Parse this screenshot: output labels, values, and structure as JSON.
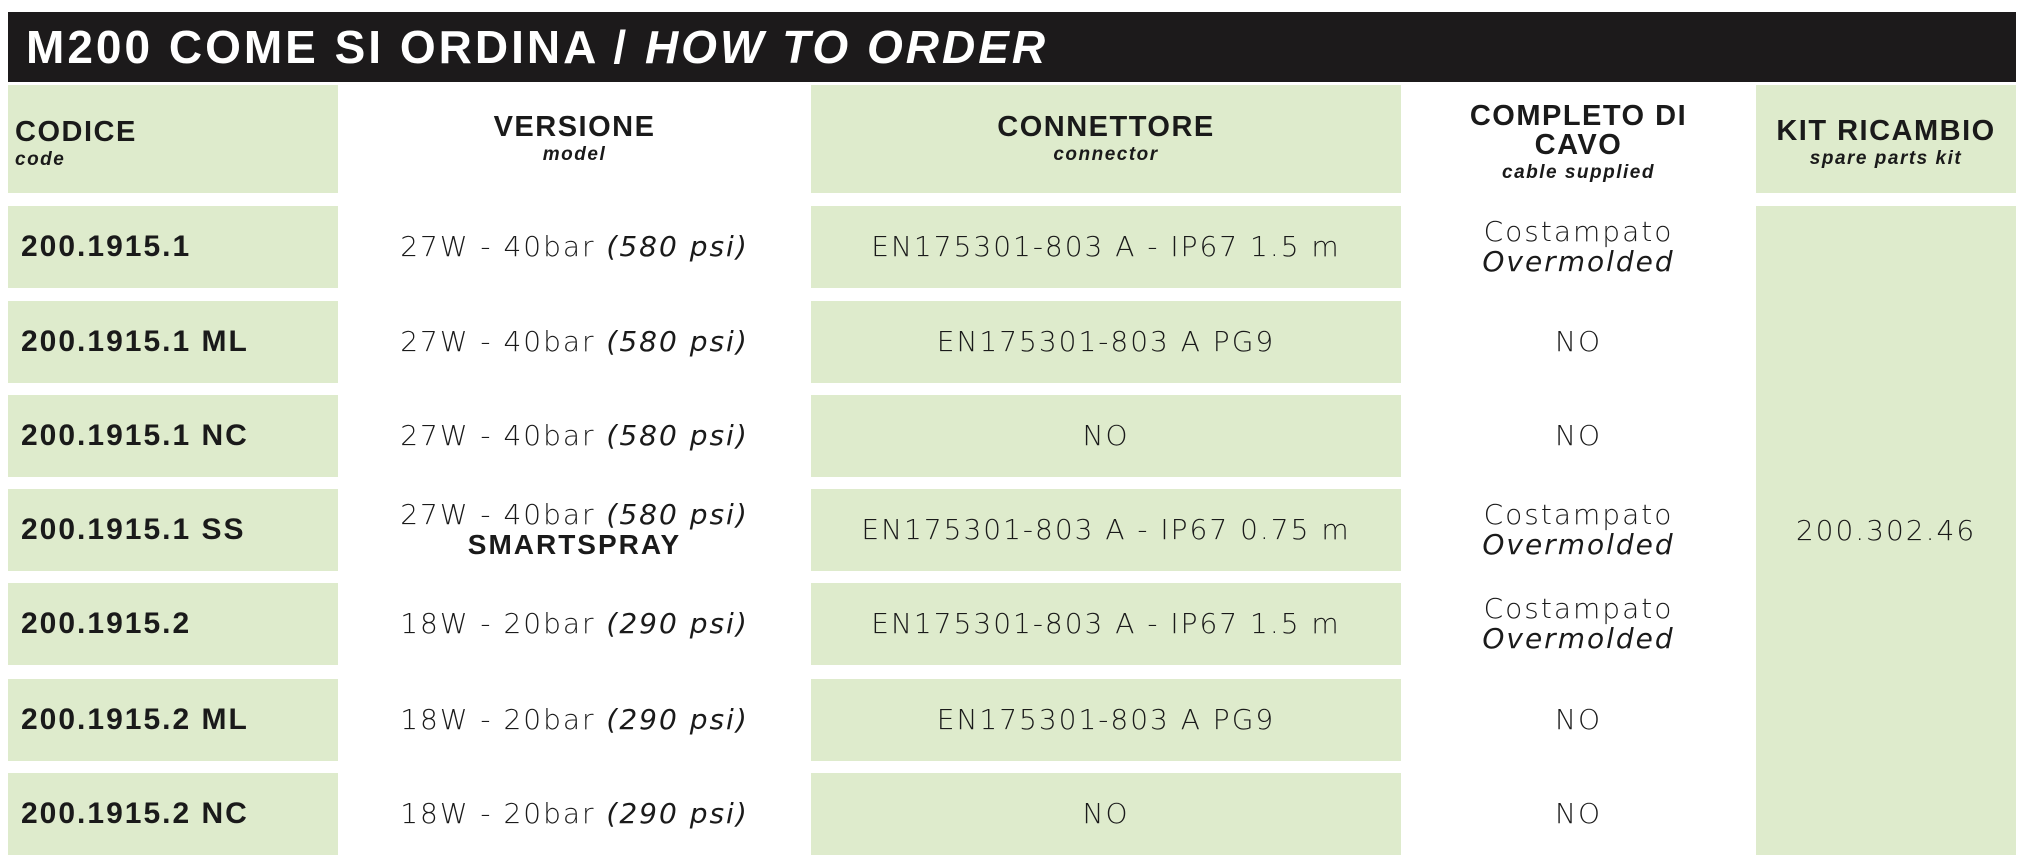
{
  "title": {
    "main": "M200 COME SI ORDINA /",
    "italic": "HOW TO ORDER"
  },
  "headers": [
    {
      "main": "CODICE",
      "sub": "code"
    },
    {
      "main": "VERSIONE",
      "sub": "model"
    },
    {
      "main": "CONNETTORE",
      "sub": "connector"
    },
    {
      "main": "COMPLETO DI CAVO",
      "sub": "cable supplied"
    },
    {
      "main": "KIT RICAMBIO",
      "sub": "spare parts kit"
    }
  ],
  "rows": [
    {
      "code": "200.1915.1",
      "version": "27W - 40bar",
      "version_psi": "(580 psi)",
      "version_extra": "",
      "connector": "EN175301-803 A - IP67 1.5 m",
      "cable": "Costampato",
      "cable_en": "Overmolded"
    },
    {
      "code": "200.1915.1 ML",
      "version": "27W - 40bar",
      "version_psi": "(580 psi)",
      "version_extra": "",
      "connector": "EN175301-803 A PG9",
      "cable": "NO",
      "cable_en": ""
    },
    {
      "code": "200.1915.1 NC",
      "version": "27W - 40bar",
      "version_psi": "(580 psi)",
      "version_extra": "",
      "connector": "NO",
      "cable": "NO",
      "cable_en": ""
    },
    {
      "code": "200.1915.1 SS",
      "version": "27W - 40bar",
      "version_psi": "(580 psi)",
      "version_extra": "SMARTSPRAY",
      "connector": "EN175301-803 A - IP67 0.75 m",
      "cable": "Costampato",
      "cable_en": "Overmolded"
    },
    {
      "code": "200.1915.2",
      "version": "18W - 20bar",
      "version_psi": "(290 psi)",
      "version_extra": "",
      "connector": "EN175301-803 A - IP67 1.5 m",
      "cable": "Costampato",
      "cable_en": "Overmolded"
    },
    {
      "code": "200.1915.2 ML",
      "version": "18W - 20bar",
      "version_psi": "(290 psi)",
      "version_extra": "",
      "connector": "EN175301-803 A PG9",
      "cable": "NO",
      "cable_en": ""
    },
    {
      "code": "200.1915.2 NC",
      "version": "18W - 20bar",
      "version_psi": "(290 psi)",
      "version_extra": "",
      "connector": "NO",
      "cable": "NO",
      "cable_en": ""
    }
  ],
  "kit": "200.302.46",
  "colors": {
    "title_bg": "#1c1a1b",
    "cell_green": "#deebcc"
  }
}
